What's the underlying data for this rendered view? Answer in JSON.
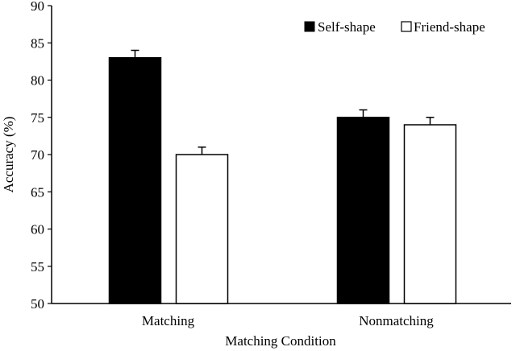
{
  "chart_data": {
    "type": "bar",
    "title": "",
    "xlabel": "Matching Condition",
    "ylabel": "Accuracy (%)",
    "ylim": [
      50,
      90
    ],
    "yticks": [
      50,
      55,
      60,
      65,
      70,
      75,
      80,
      85,
      90
    ],
    "ytick_labels": [
      "50",
      "55",
      "60",
      "65",
      "70",
      "75",
      "80",
      "85",
      "90"
    ],
    "categories": [
      "Matching",
      "Nonmatching"
    ],
    "series": [
      {
        "name": "Self-shape",
        "values": [
          83,
          75
        ],
        "errors": [
          1,
          1
        ],
        "color": "#000000"
      },
      {
        "name": "Friend-shape",
        "values": [
          70,
          74
        ],
        "errors": [
          1,
          1
        ],
        "color": "#ffffff"
      }
    ],
    "legend_position": "top-right",
    "grid": false,
    "error_bars": "upper"
  }
}
